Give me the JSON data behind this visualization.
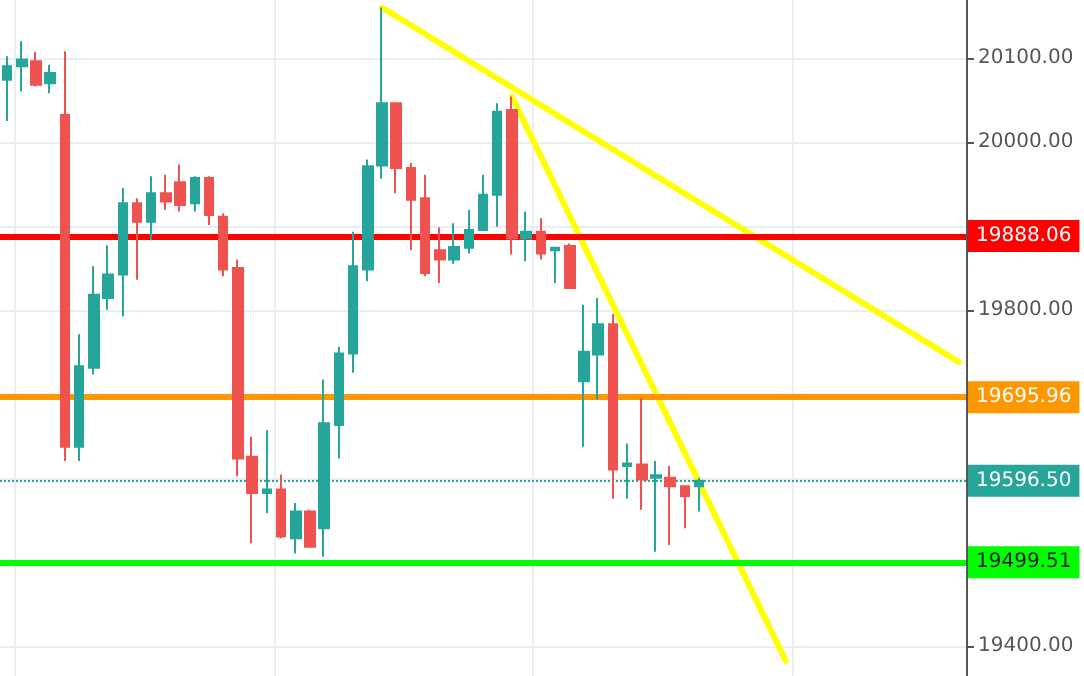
{
  "chart_data": {
    "type": "candlestick",
    "categories": [
      null,
      null,
      null,
      null,
      null,
      null,
      null,
      null,
      null,
      null,
      null,
      null,
      null,
      null,
      null,
      null,
      null,
      null,
      null,
      null,
      null,
      null,
      null,
      null,
      null,
      null,
      null,
      null,
      null,
      null,
      null,
      null,
      null,
      null,
      null,
      null,
      null,
      null,
      null,
      null,
      null,
      null,
      null,
      null,
      null,
      null,
      null,
      null,
      null,
      null,
      null,
      null,
      null,
      null,
      null,
      null,
      null,
      null,
      null,
      null,
      null,
      null,
      null,
      null,
      null,
      null,
      null
    ],
    "ohlc": [
      [
        20074,
        20102,
        20025,
        20090
      ],
      [
        20090,
        20120,
        20060,
        20098
      ],
      [
        20096,
        20107,
        20066,
        20068
      ],
      [
        20070,
        20092,
        20058,
        20082
      ],
      [
        20032,
        20108,
        19620,
        19637
      ],
      [
        19637,
        19771,
        19620,
        19733
      ],
      [
        19731,
        19852,
        19723,
        19818
      ],
      [
        19814,
        19877,
        19800,
        19842
      ],
      [
        19842,
        19945,
        19792,
        19927
      ],
      [
        19927,
        19933,
        19836,
        19905
      ],
      [
        19905,
        19959,
        19883,
        19939
      ],
      [
        19939,
        19961,
        19919,
        19929
      ],
      [
        19952,
        19973,
        19917,
        19925
      ],
      [
        19927,
        19959,
        19917,
        19957
      ],
      [
        19957,
        19959,
        19901,
        19913
      ],
      [
        19911,
        19915,
        19840,
        19848
      ],
      [
        19850,
        19860,
        19602,
        19623
      ],
      [
        19625,
        19649,
        19522,
        19582
      ],
      [
        19582,
        19657,
        19558,
        19586
      ],
      [
        19586,
        19604,
        19528,
        19530
      ],
      [
        19528,
        19570,
        19510,
        19560
      ],
      [
        19560,
        19562,
        19517,
        19518
      ],
      [
        19540,
        19717,
        19506,
        19665
      ],
      [
        19663,
        19756,
        19623,
        19748
      ],
      [
        19748,
        19893,
        19725,
        19852
      ],
      [
        19848,
        19979,
        19834,
        19971
      ],
      [
        19972,
        20160,
        19956,
        20046
      ],
      [
        20046,
        20046,
        19939,
        19969
      ],
      [
        19969,
        19975,
        19871,
        19931
      ],
      [
        19933,
        19961,
        19840,
        19844
      ],
      [
        19871,
        19898,
        19832,
        19860
      ],
      [
        19860,
        19903,
        19855,
        19875
      ],
      [
        19874,
        19919,
        19867,
        19895
      ],
      [
        19895,
        19961,
        19895,
        19937
      ],
      [
        19937,
        20046,
        19899,
        20036
      ],
      [
        20038,
        20054,
        19866,
        19885
      ],
      [
        19885,
        19917,
        19858,
        19893
      ],
      [
        19893,
        19909,
        19860,
        19867
      ],
      [
        19871,
        19875,
        19832,
        19874
      ],
      [
        19876,
        19879,
        19826,
        19826
      ],
      [
        19715,
        19806,
        19637,
        19750
      ],
      [
        19747,
        19814,
        19693,
        19783
      ],
      [
        19783,
        19795,
        19575,
        19610
      ],
      [
        19614,
        19641,
        19575,
        19617
      ],
      [
        19616,
        19695,
        19562,
        19598
      ],
      [
        19600,
        19620,
        19512,
        19603
      ],
      [
        19600,
        19614,
        19520,
        19590
      ],
      [
        19590,
        19591,
        19540,
        19578
      ],
      [
        19590,
        19600,
        19560,
        19596.5
      ],
      null,
      null,
      null,
      null,
      null,
      null,
      null,
      null,
      null,
      null,
      null,
      null,
      null,
      null,
      null,
      null,
      null,
      null
    ],
    "colors": [
      "#26a69a",
      "#26a69a",
      "#ef5350",
      "#26a69a",
      "#ef5350",
      "#26a69a",
      "#26a69a",
      "#26a69a",
      "#26a69a",
      "#ef5350",
      "#26a69a",
      "#ef5350",
      "#ef5350",
      "#26a69a",
      "#ef5350",
      "#ef5350",
      "#ef5350",
      "#ef5350",
      "#26a69a",
      "#ef5350",
      "#26a69a",
      "#ef5350",
      "#26a69a",
      "#26a69a",
      "#26a69a",
      "#26a69a",
      "#26a69a",
      "#ef5350",
      "#ef5350",
      "#ef5350",
      "#ef5350",
      "#26a69a",
      "#26a69a",
      "#26a69a",
      "#26a69a",
      "#ef5350",
      "#26a69a",
      "#ef5350",
      "#26a69a",
      "#ef5350",
      "#26a69a",
      "#26a69a",
      "#ef5350",
      "#26a69a",
      "#ef5350",
      "#26a69a",
      "#ef5350",
      "#ef5350",
      "#26a69a",
      null,
      null,
      null,
      null,
      null,
      null,
      null,
      null,
      null,
      null,
      null,
      null,
      null,
      null,
      null,
      null,
      null,
      null
    ],
    "series": [
      {
        "type": "line",
        "color": "#ffff00",
        "values": [
          null,
          null,
          null,
          null,
          null,
          null,
          null,
          null,
          null,
          null,
          null,
          null,
          null,
          null,
          null,
          null,
          null,
          null,
          null,
          null,
          null,
          null,
          null,
          null,
          null,
          null,
          20160,
          null,
          null,
          null,
          null,
          null,
          null,
          null,
          null,
          null,
          null,
          null,
          null,
          null,
          null,
          null,
          null,
          null,
          null,
          null,
          null,
          null,
          null,
          null,
          null,
          null,
          null,
          null,
          null,
          null,
          null,
          null,
          null,
          null,
          null,
          null,
          null,
          null,
          null,
          null,
          19738
        ]
      },
      {
        "type": "line",
        "color": "#ffff00",
        "values": [
          null,
          null,
          null,
          null,
          null,
          null,
          null,
          null,
          null,
          null,
          null,
          null,
          null,
          null,
          null,
          null,
          null,
          null,
          null,
          null,
          null,
          null,
          null,
          null,
          null,
          null,
          null,
          null,
          null,
          null,
          null,
          null,
          null,
          null,
          null,
          20054,
          null,
          null,
          null,
          null,
          null,
          null,
          null,
          null,
          null,
          null,
          null,
          null,
          null,
          null,
          null,
          null,
          null,
          null,
          19382,
          null,
          null,
          null,
          null,
          null,
          null,
          null,
          null,
          null,
          null,
          null,
          null
        ]
      }
    ],
    "ylim": [
      19364,
      20169
    ],
    "yticks": [
      {
        "value": 19400,
        "label": "19400.00"
      },
      {
        "value": 19500,
        "label": null
      },
      {
        "value": 19600,
        "label": null
      },
      {
        "value": 19700,
        "label": null
      },
      {
        "value": 19800,
        "label": "19800.00"
      },
      {
        "value": 19900,
        "label": null
      },
      {
        "value": 20000,
        "label": "20000.00"
      },
      {
        "value": 20100,
        "label": "20100.00"
      }
    ],
    "ref_lines": [
      {
        "axis": "y",
        "value": 19888.06,
        "label": "19888.06",
        "color": "#ff0000",
        "line_style": "solid"
      },
      {
        "axis": "y",
        "value": 19695.96,
        "label": "19695.96",
        "color": "#ff9800",
        "line_style": "solid"
      },
      {
        "axis": "y",
        "value": 19596.5,
        "label": "19596.50",
        "color": "#26a69a",
        "line_style": "dotted"
      },
      {
        "axis": "y",
        "value": 19499.51,
        "label": "19499.51",
        "color": "#00ff00",
        "line_style": "solid"
      }
    ],
    "grid": true,
    "tick_labels": "y",
    "line_style": "solid"
  }
}
